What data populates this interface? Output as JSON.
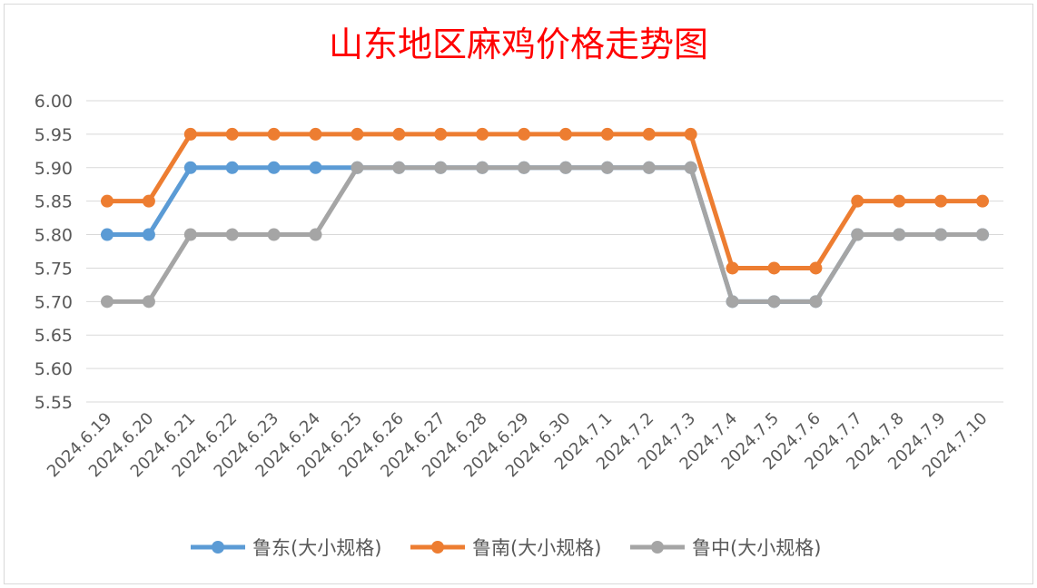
{
  "chart_data": {
    "type": "line",
    "title": "山东地区麻鸡价格走势图",
    "xlabel": "",
    "ylabel": "",
    "ylim": [
      5.55,
      6.0
    ],
    "ytick_step": 0.05,
    "grid": true,
    "legend_position": "bottom",
    "categories": [
      "2024.6.19",
      "2024.6.20",
      "2024.6.21",
      "2024.6.22",
      "2024.6.23",
      "2024.6.24",
      "2024.6.25",
      "2024.6.26",
      "2024.6.27",
      "2024.6.28",
      "2024.6.29",
      "2024.6.30",
      "2024.7.1",
      "2024.7.2",
      "2024.7.3",
      "2024.7.4",
      "2024.7.5",
      "2024.7.6",
      "2024.7.7",
      "2024.7.8",
      "2024.7.9",
      "2024.7.10"
    ],
    "series": [
      {
        "name": "鲁东(大小规格)",
        "color": "#5b9bd5",
        "values": [
          5.8,
          5.8,
          5.9,
          5.9,
          5.9,
          5.9,
          5.9,
          5.9,
          5.9,
          5.9,
          5.9,
          5.9,
          5.9,
          5.9,
          5.9,
          5.7,
          5.7,
          5.7,
          5.8,
          5.8,
          5.8,
          5.8
        ]
      },
      {
        "name": "鲁南(大小规格)",
        "color": "#ed7d31",
        "values": [
          5.85,
          5.85,
          5.95,
          5.95,
          5.95,
          5.95,
          5.95,
          5.95,
          5.95,
          5.95,
          5.95,
          5.95,
          5.95,
          5.95,
          5.95,
          5.75,
          5.75,
          5.75,
          5.85,
          5.85,
          5.85,
          5.85
        ]
      },
      {
        "name": "鲁中(大小规格)",
        "color": "#a5a5a5",
        "values": [
          5.7,
          5.7,
          5.8,
          5.8,
          5.8,
          5.8,
          5.9,
          5.9,
          5.9,
          5.9,
          5.9,
          5.9,
          5.9,
          5.9,
          5.9,
          5.7,
          5.7,
          5.7,
          5.8,
          5.8,
          5.8,
          5.8
        ]
      }
    ]
  }
}
